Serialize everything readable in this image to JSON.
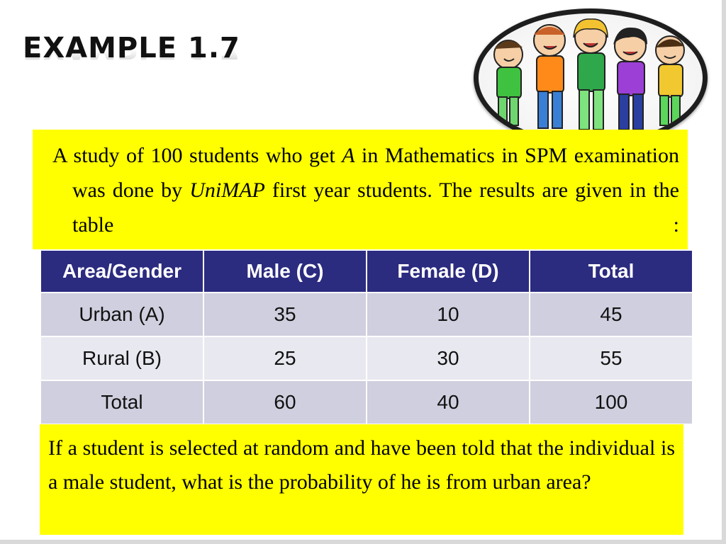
{
  "slide": {
    "title": "EXAMPLE 1.7",
    "intro": {
      "part1": "A study of  100 students who get ",
      "grade": "A",
      "part2": " in Mathematics in SPM examination  was done by ",
      "org": "UniMAP",
      "part3": " first year students. The results are given in the table :"
    },
    "question": "If a student is selected at random and have been told that the individual is a male student, what is the probability of he is from urban area?",
    "image": {
      "icon": "kids-group-image"
    }
  },
  "table": {
    "headers": [
      "Area/Gender",
      "Male (C)",
      "Female (D)",
      "Total"
    ],
    "rows": [
      [
        "Urban (A)",
        "35",
        "10",
        "45"
      ],
      [
        "Rural (B)",
        "25",
        "30",
        "55"
      ],
      [
        "Total",
        "60",
        "40",
        "100"
      ]
    ]
  },
  "colors": {
    "header_bg": "#2b2b80",
    "highlight": "#ffff00",
    "row_odd": "#cfcfdf",
    "row_even": "#e8e8f0"
  }
}
